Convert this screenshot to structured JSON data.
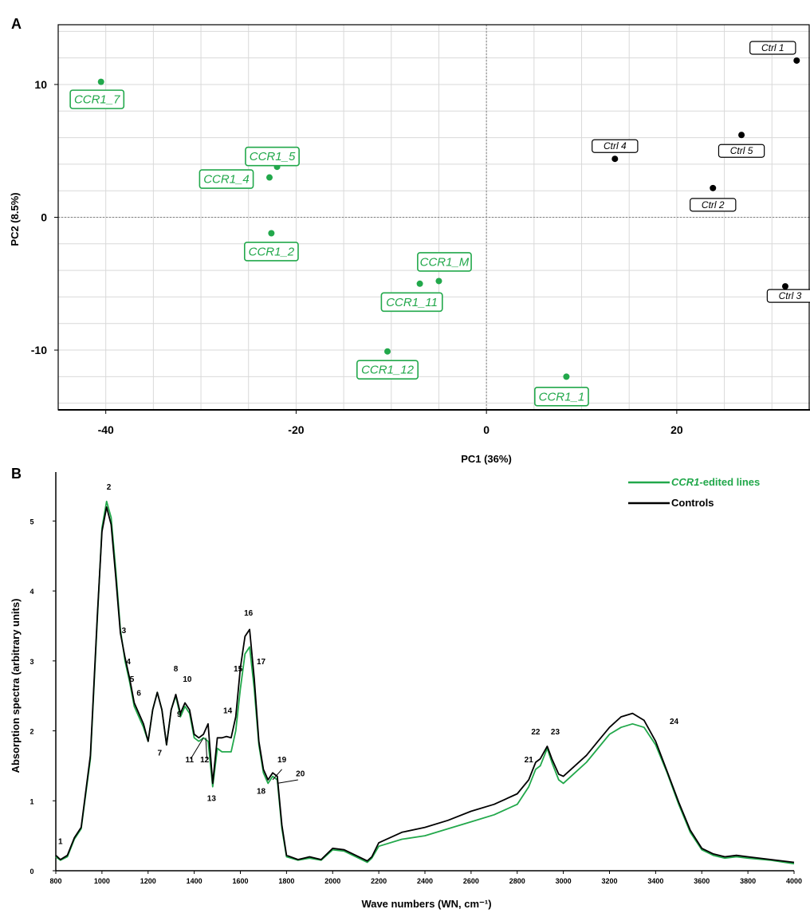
{
  "colors": {
    "edited": "#22a84b",
    "control": "#000000",
    "grid": "#d9d9d9",
    "zero": "#808080"
  },
  "chart_data": [
    {
      "panel_label": "A",
      "type": "scatter",
      "xlabel": "PC1 (36%)",
      "ylabel": "PC2 (8.5%)",
      "xlim": [
        -45,
        34
      ],
      "ylim": [
        -14.5,
        14.5
      ],
      "xticks": [
        -40,
        -20,
        0,
        20
      ],
      "yticks": [
        10,
        0,
        -10
      ],
      "grid": true,
      "series": [
        {
          "group": "edited",
          "points": [
            {
              "label": "CCR1_7",
              "x": -40.5,
              "y": 10.2
            },
            {
              "label": "CCR1_5",
              "x": -22.0,
              "y": 3.8
            },
            {
              "label": "CCR1_4",
              "x": -22.8,
              "y": 3.0
            },
            {
              "label": "CCR1_2",
              "x": -22.6,
              "y": -1.2
            },
            {
              "label": "CCR1_M",
              "x": -5.0,
              "y": -4.8
            },
            {
              "label": "CCR1_11",
              "x": -7.0,
              "y": -5.0
            },
            {
              "label": "CCR1_12",
              "x": -10.4,
              "y": -10.1
            },
            {
              "label": "CCR1_1",
              "x": 8.4,
              "y": -12.0
            }
          ]
        },
        {
          "group": "control",
          "points": [
            {
              "label": "Ctrl 1",
              "x": 32.6,
              "y": 11.8
            },
            {
              "label": "Ctrl 4",
              "x": 13.5,
              "y": 4.4
            },
            {
              "label": "Ctrl 5",
              "x": 26.8,
              "y": 6.2
            },
            {
              "label": "Ctrl 2",
              "x": 23.8,
              "y": 2.2
            },
            {
              "label": "Ctrl 3",
              "x": 31.4,
              "y": -5.2
            }
          ]
        }
      ]
    },
    {
      "panel_label": "B",
      "type": "line",
      "xlabel": "Wave numbers (WN, cm⁻¹)",
      "ylabel": "Absorption spectra (arbitrary units)",
      "xlim": [
        800,
        4000
      ],
      "ylim": [
        0,
        5.7
      ],
      "xticks": [
        800,
        1000,
        1200,
        1400,
        1600,
        1800,
        2000,
        2200,
        2400,
        2600,
        2800,
        3000,
        3200,
        3400,
        3600,
        3800,
        4000
      ],
      "yticks": [
        0,
        1,
        2,
        3,
        4,
        5
      ],
      "legend": {
        "position": "top-right",
        "entries": [
          {
            "italic": "CCR1",
            "text": "-edited lines",
            "group": "edited"
          },
          {
            "italic": "",
            "text": "Controls",
            "group": "control"
          }
        ]
      },
      "series": [
        {
          "name": "CCR1-edited lines",
          "group": "edited",
          "x": [
            800,
            820,
            850,
            880,
            910,
            950,
            980,
            1000,
            1020,
            1040,
            1060,
            1080,
            1100,
            1120,
            1140,
            1160,
            1180,
            1200,
            1220,
            1240,
            1260,
            1280,
            1300,
            1320,
            1340,
            1360,
            1380,
            1400,
            1420,
            1440,
            1460,
            1480,
            1500,
            1520,
            1540,
            1560,
            1580,
            1600,
            1620,
            1640,
            1660,
            1680,
            1700,
            1720,
            1740,
            1760,
            1780,
            1800,
            1850,
            1900,
            1950,
            2000,
            2050,
            2100,
            2150,
            2170,
            2200,
            2300,
            2400,
            2500,
            2600,
            2700,
            2800,
            2850,
            2880,
            2900,
            2930,
            2950,
            2980,
            3000,
            3050,
            3100,
            3150,
            3200,
            3250,
            3300,
            3350,
            3400,
            3450,
            3500,
            3550,
            3600,
            3650,
            3700,
            3750,
            3800,
            3900,
            4000
          ],
          "y": [
            0.2,
            0.15,
            0.2,
            0.45,
            0.6,
            1.6,
            3.6,
            4.9,
            5.28,
            5.05,
            4.3,
            3.45,
            3.0,
            2.7,
            2.35,
            2.2,
            2.05,
            1.85,
            2.3,
            2.55,
            2.3,
            1.8,
            2.3,
            2.5,
            2.2,
            2.35,
            2.25,
            1.9,
            1.85,
            1.9,
            1.85,
            1.2,
            1.75,
            1.7,
            1.7,
            1.7,
            2.0,
            2.6,
            3.1,
            3.2,
            2.6,
            1.8,
            1.4,
            1.25,
            1.35,
            1.3,
            0.6,
            0.2,
            0.15,
            0.18,
            0.15,
            0.3,
            0.28,
            0.2,
            0.12,
            0.18,
            0.35,
            0.45,
            0.5,
            0.6,
            0.7,
            0.8,
            0.95,
            1.2,
            1.45,
            1.5,
            1.75,
            1.55,
            1.3,
            1.25,
            1.4,
            1.55,
            1.75,
            1.95,
            2.05,
            2.1,
            2.05,
            1.8,
            1.4,
            0.95,
            0.55,
            0.3,
            0.22,
            0.18,
            0.2,
            0.18,
            0.15,
            0.1
          ]
        },
        {
          "name": "Controls",
          "group": "control",
          "x": [
            800,
            820,
            850,
            880,
            910,
            950,
            980,
            1000,
            1020,
            1040,
            1060,
            1080,
            1100,
            1120,
            1140,
            1160,
            1180,
            1200,
            1220,
            1240,
            1260,
            1280,
            1300,
            1320,
            1340,
            1360,
            1380,
            1400,
            1420,
            1440,
            1460,
            1480,
            1500,
            1520,
            1540,
            1560,
            1580,
            1600,
            1620,
            1640,
            1660,
            1680,
            1700,
            1720,
            1740,
            1760,
            1780,
            1800,
            1850,
            1900,
            1950,
            2000,
            2050,
            2100,
            2150,
            2170,
            2200,
            2300,
            2400,
            2500,
            2600,
            2700,
            2800,
            2850,
            2880,
            2900,
            2930,
            2950,
            2980,
            3000,
            3050,
            3100,
            3150,
            3200,
            3250,
            3300,
            3350,
            3400,
            3450,
            3500,
            3550,
            3600,
            3650,
            3700,
            3750,
            3800,
            3900,
            4000
          ],
          "y": [
            0.22,
            0.16,
            0.22,
            0.47,
            0.62,
            1.65,
            3.65,
            4.85,
            5.2,
            4.95,
            4.2,
            3.4,
            3.05,
            2.75,
            2.4,
            2.25,
            2.1,
            1.85,
            2.3,
            2.55,
            2.3,
            1.8,
            2.3,
            2.52,
            2.25,
            2.4,
            2.3,
            1.95,
            1.9,
            1.95,
            2.1,
            1.25,
            1.9,
            1.9,
            1.92,
            1.9,
            2.2,
            2.9,
            3.35,
            3.45,
            2.75,
            1.85,
            1.45,
            1.3,
            1.4,
            1.35,
            0.65,
            0.22,
            0.16,
            0.2,
            0.16,
            0.32,
            0.3,
            0.22,
            0.14,
            0.2,
            0.4,
            0.55,
            0.62,
            0.72,
            0.85,
            0.95,
            1.1,
            1.3,
            1.55,
            1.6,
            1.78,
            1.6,
            1.38,
            1.35,
            1.5,
            1.65,
            1.85,
            2.05,
            2.2,
            2.25,
            2.15,
            1.85,
            1.42,
            0.98,
            0.58,
            0.32,
            0.24,
            0.2,
            0.22,
            0.2,
            0.16,
            0.12
          ]
        }
      ],
      "annotations": [
        {
          "text": "1",
          "x": 820,
          "y": 0.38
        },
        {
          "text": "2",
          "x": 1030,
          "y": 5.45
        },
        {
          "text": "3",
          "x": 1095,
          "y": 3.4
        },
        {
          "text": "4",
          "x": 1115,
          "y": 2.95
        },
        {
          "text": "5",
          "x": 1130,
          "y": 2.7
        },
        {
          "text": "6",
          "x": 1160,
          "y": 2.5
        },
        {
          "text": "7",
          "x": 1250,
          "y": 1.65
        },
        {
          "text": "8",
          "x": 1320,
          "y": 2.85
        },
        {
          "text": "9",
          "x": 1335,
          "y": 2.2
        },
        {
          "text": "10",
          "x": 1370,
          "y": 2.7
        },
        {
          "text": "11",
          "x": 1380,
          "y": 1.55
        },
        {
          "text": "12",
          "x": 1445,
          "y": 1.55
        },
        {
          "text": "13",
          "x": 1475,
          "y": 1.0
        },
        {
          "text": "14",
          "x": 1545,
          "y": 2.25
        },
        {
          "text": "15",
          "x": 1590,
          "y": 2.85
        },
        {
          "text": "16",
          "x": 1635,
          "y": 3.65
        },
        {
          "text": "17",
          "x": 1690,
          "y": 2.95
        },
        {
          "text": "18",
          "x": 1690,
          "y": 1.1
        },
        {
          "text": "19",
          "x": 1780,
          "y": 1.55
        },
        {
          "text": "20",
          "x": 1860,
          "y": 1.35
        },
        {
          "text": "21",
          "x": 2850,
          "y": 1.55
        },
        {
          "text": "22",
          "x": 2880,
          "y": 1.95
        },
        {
          "text": "23",
          "x": 2965,
          "y": 1.95
        },
        {
          "text": "24",
          "x": 3480,
          "y": 2.1
        }
      ]
    }
  ]
}
